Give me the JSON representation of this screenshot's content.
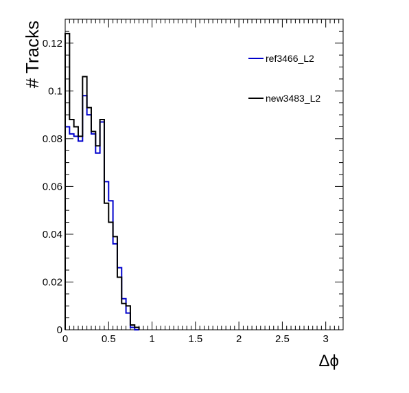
{
  "chart_data": {
    "type": "histogram",
    "xlabel": "Δϕ",
    "ylabel": "# Tracks",
    "xlim": [
      0,
      3.2
    ],
    "ylim": [
      0,
      0.13
    ],
    "grid": false,
    "legend_position": "top-right",
    "bin_width": 0.05,
    "x_ticks": [
      0,
      0.5,
      1,
      1.5,
      2,
      2.5,
      3
    ],
    "x_tick_labels": [
      "0",
      "0.5",
      "1",
      "1.5",
      "2",
      "2.5",
      "3"
    ],
    "y_ticks": [
      0,
      0.02,
      0.04,
      0.06,
      0.08,
      0.1,
      0.12
    ],
    "y_tick_labels": [
      "0",
      "0.02",
      "0.04",
      "0.06",
      "0.08",
      "0.1",
      "0.12"
    ],
    "series": [
      {
        "name": "ref3466_L2",
        "color": "#0000cc",
        "values": [
          0.085,
          0.082,
          0.081,
          0.079,
          0.098,
          0.09,
          0.082,
          0.074,
          0.087,
          0.062,
          0.054,
          0.036,
          0.026,
          0.013,
          0.007,
          0.001,
          0.0
        ]
      },
      {
        "name": "new3483_L2",
        "color": "#000000",
        "values": [
          0.124,
          0.088,
          0.085,
          0.081,
          0.106,
          0.093,
          0.083,
          0.077,
          0.088,
          0.053,
          0.045,
          0.039,
          0.022,
          0.011,
          0.01,
          0.002,
          0.001
        ]
      }
    ]
  }
}
